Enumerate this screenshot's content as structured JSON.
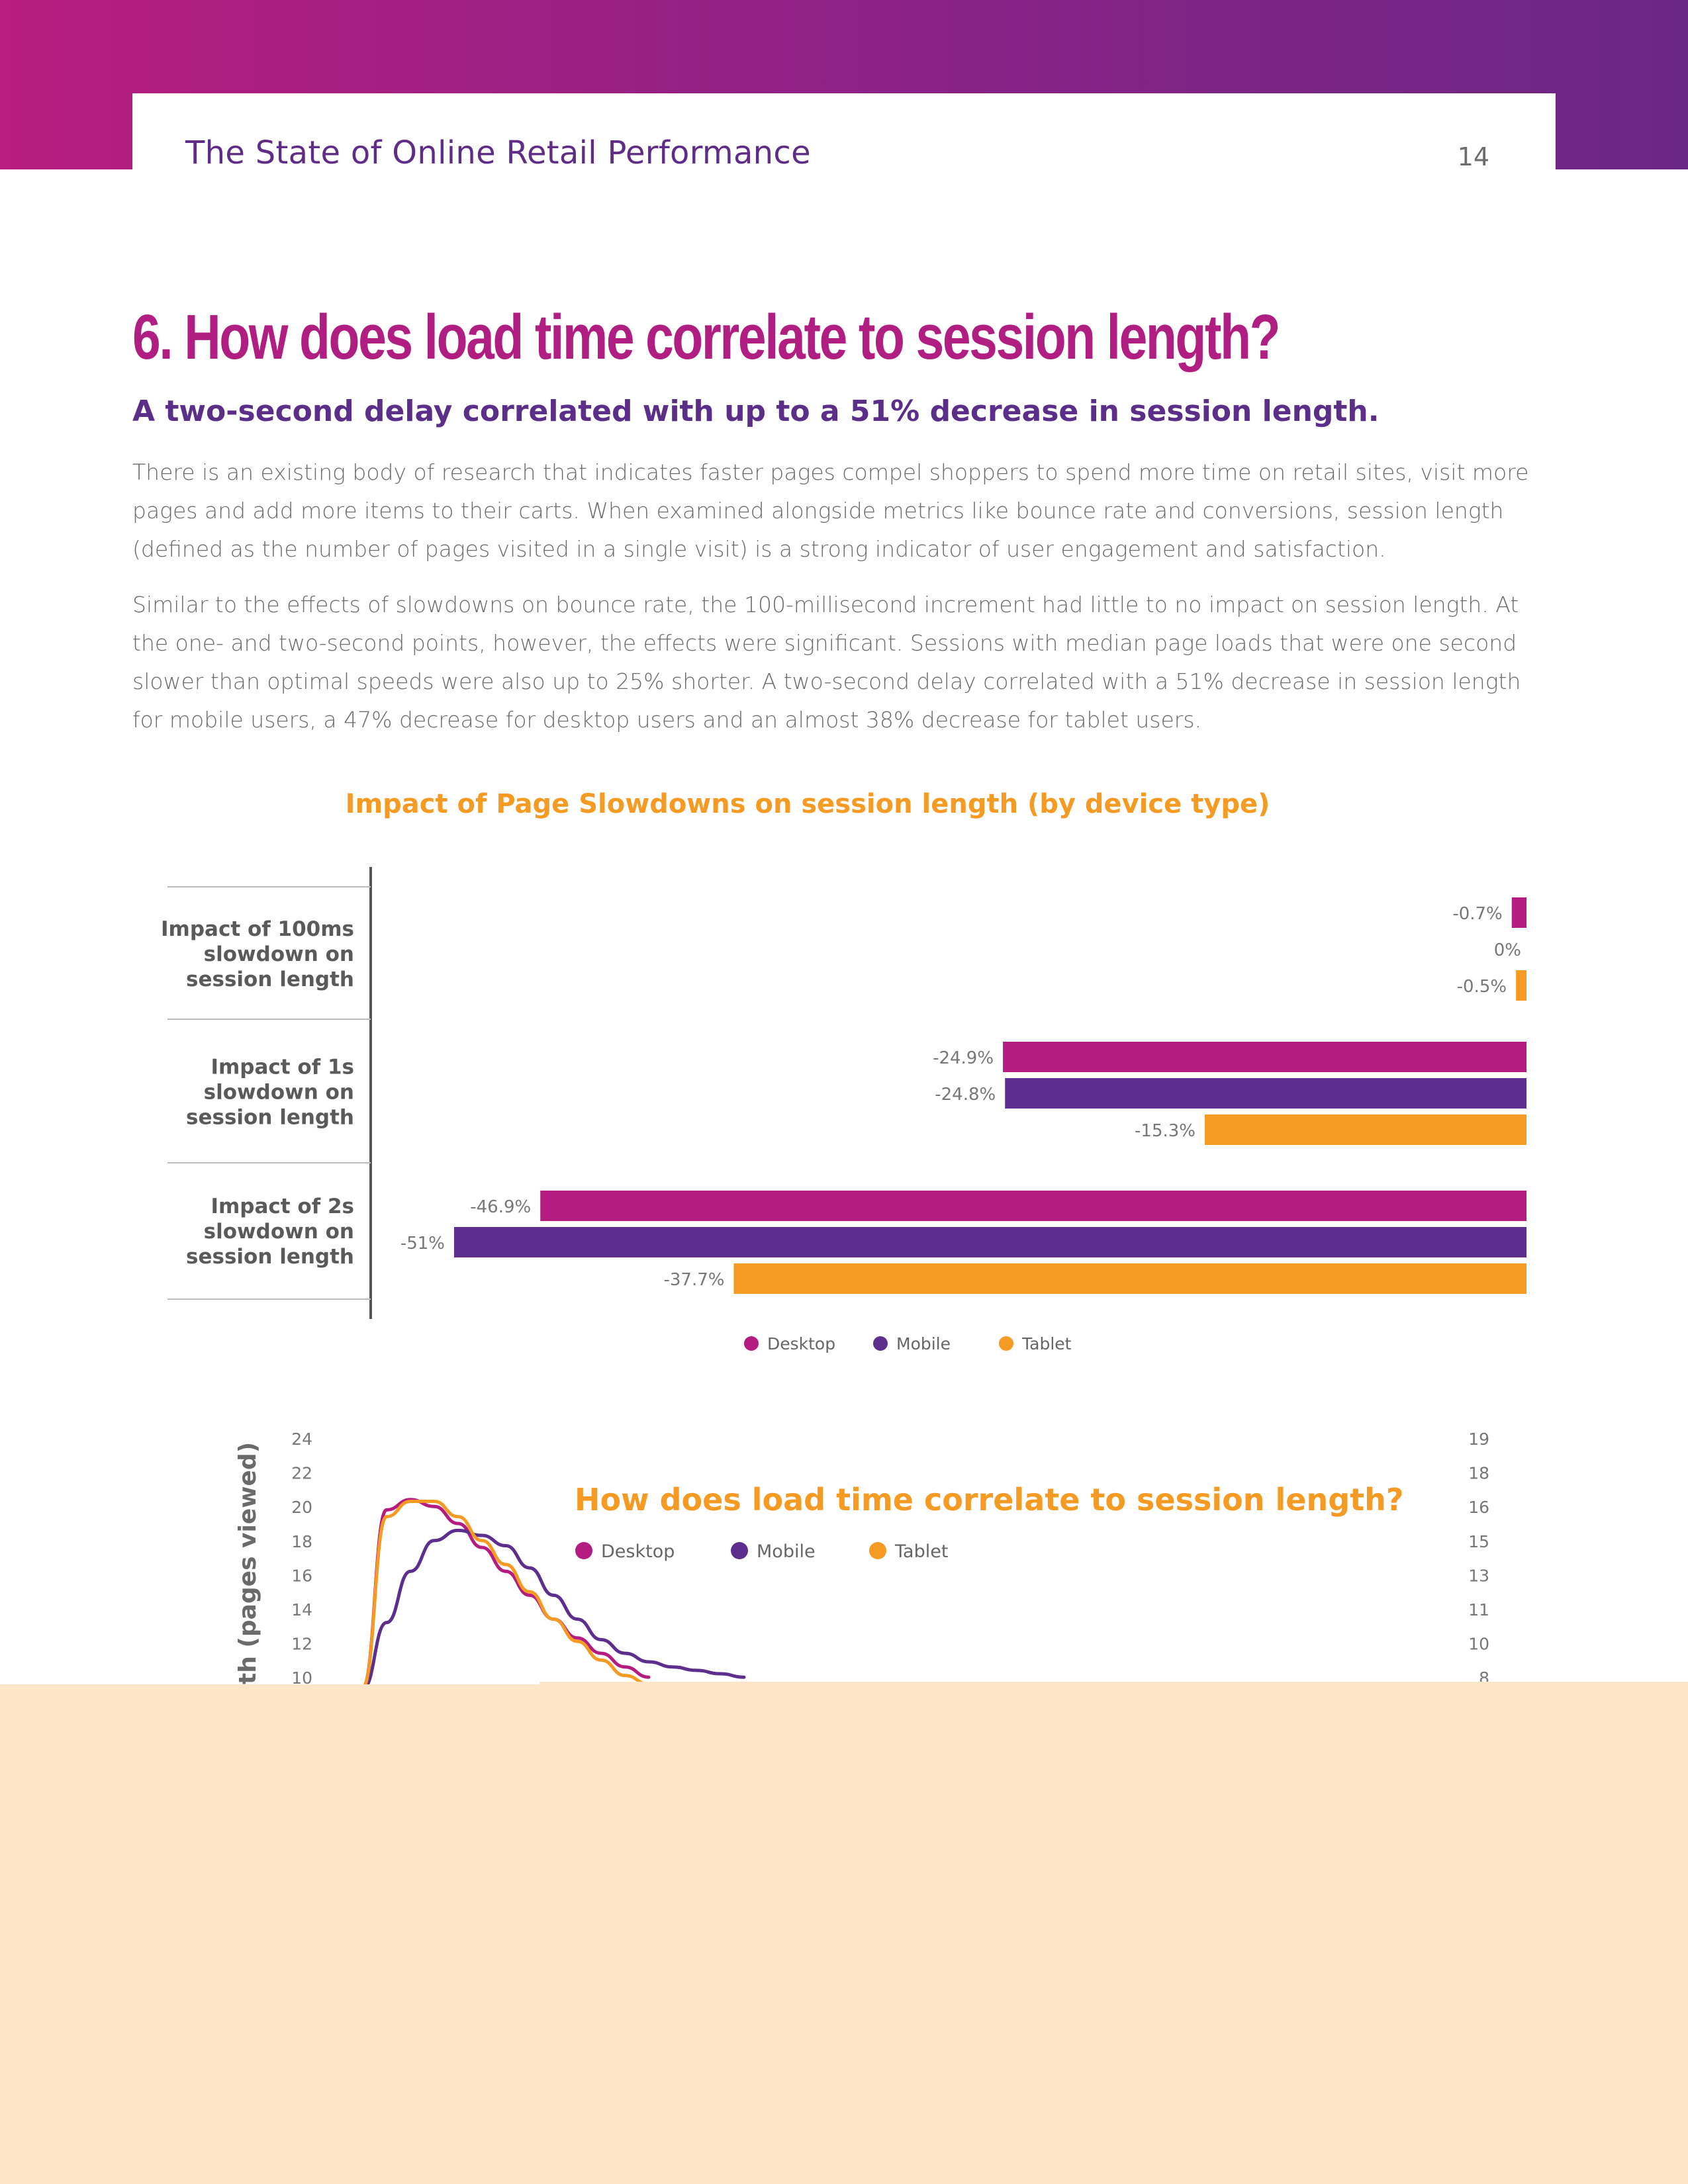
{
  "header": {
    "running_title": "The State of Online Retail Performance",
    "page_number": "14"
  },
  "section": {
    "heading": "6. How does load time correlate to session length?",
    "subheading": "A two-second delay correlated with up to a 51% decrease in session length.",
    "paragraph_1": "There is an existing body of research that indicates faster pages compel shoppers to spend more time on retail sites, visit more pages and add more items to their carts. When examined alongside metrics like bounce rate and conversions, session length (defined as the number of pages visited in a single visit) is a strong indicator of user engagement and satisfaction.",
    "paragraph_2": "Similar to the effects of slowdowns on bounce rate, the 100-millisecond increment had little to no impact on session length. At the one- and two-second points, however, the effects were significant. Sessions with median page loads that were one second slower than optimal speeds were also up to 25% shorter. A two-second delay correlated with a 51% decrease in session length for mobile users, a 47% decrease for desktop users and an almost 38% decrease for tablet users."
  },
  "colors": {
    "desktop": "#b51c82",
    "mobile": "#5d2e8e",
    "tablet": "#f59a23",
    "heading": "#b01e82",
    "subheading": "#5b2e8a"
  },
  "chart_data": [
    {
      "type": "bar",
      "orientation": "horizontal",
      "title": "Impact of Page Slowdowns on session length (by device type)",
      "categories": [
        [
          "Impact of 100ms",
          "slowdown on",
          "session length"
        ],
        [
          "Impact of 1s",
          "slowdown on",
          "session length"
        ],
        [
          "Impact of 2s",
          "slowdown on",
          "session length"
        ]
      ],
      "series": [
        {
          "name": "Desktop",
          "values": [
            -0.7,
            -24.9,
            -46.9
          ],
          "labels": [
            "-0.7%",
            "-24.9%",
            "-46.9%"
          ]
        },
        {
          "name": "Mobile",
          "values": [
            0,
            -24.8,
            -51
          ],
          "labels": [
            "0%",
            "-24.8%",
            "-51%"
          ]
        },
        {
          "name": "Tablet",
          "values": [
            -0.5,
            -15.3,
            -37.7
          ],
          "labels": [
            "-0.5%",
            "-15.3%",
            "-37.7%"
          ]
        }
      ],
      "xlim": [
        -51,
        0
      ],
      "legend": "bottom"
    },
    {
      "type": "line",
      "title": "How does load time correlate to session length?",
      "ylabel": "th (pages viewed)",
      "left_ticks": [
        "24",
        "22",
        "20",
        "18",
        "16",
        "14",
        "12",
        "10"
      ],
      "right_ticks": [
        "19",
        "18",
        "16",
        "15",
        "13",
        "11",
        "10",
        "8"
      ],
      "ylim": [
        10,
        24
      ],
      "x_index": [
        0,
        1,
        2,
        3,
        4,
        5,
        6,
        7,
        8,
        9,
        10,
        11,
        12,
        13,
        14,
        15,
        16
      ],
      "series": [
        {
          "name": "Desktop",
          "values": [
            9.4,
            19.8,
            20.4,
            20.0,
            19.0,
            17.6,
            16.2,
            14.8,
            13.4,
            12.3,
            11.4,
            10.6,
            10.0
          ]
        },
        {
          "name": "Mobile",
          "values": [
            9.3,
            13.2,
            16.2,
            18.0,
            18.6,
            18.3,
            17.7,
            16.4,
            14.8,
            13.4,
            12.2,
            11.4,
            10.9,
            10.6,
            10.4,
            10.2,
            10.0
          ]
        },
        {
          "name": "Tablet",
          "values": [
            9.4,
            19.4,
            20.3,
            20.3,
            19.4,
            18.0,
            16.6,
            15.0,
            13.4,
            12.1,
            11.0,
            10.1,
            9.6
          ]
        }
      ],
      "legend": "top"
    }
  ]
}
